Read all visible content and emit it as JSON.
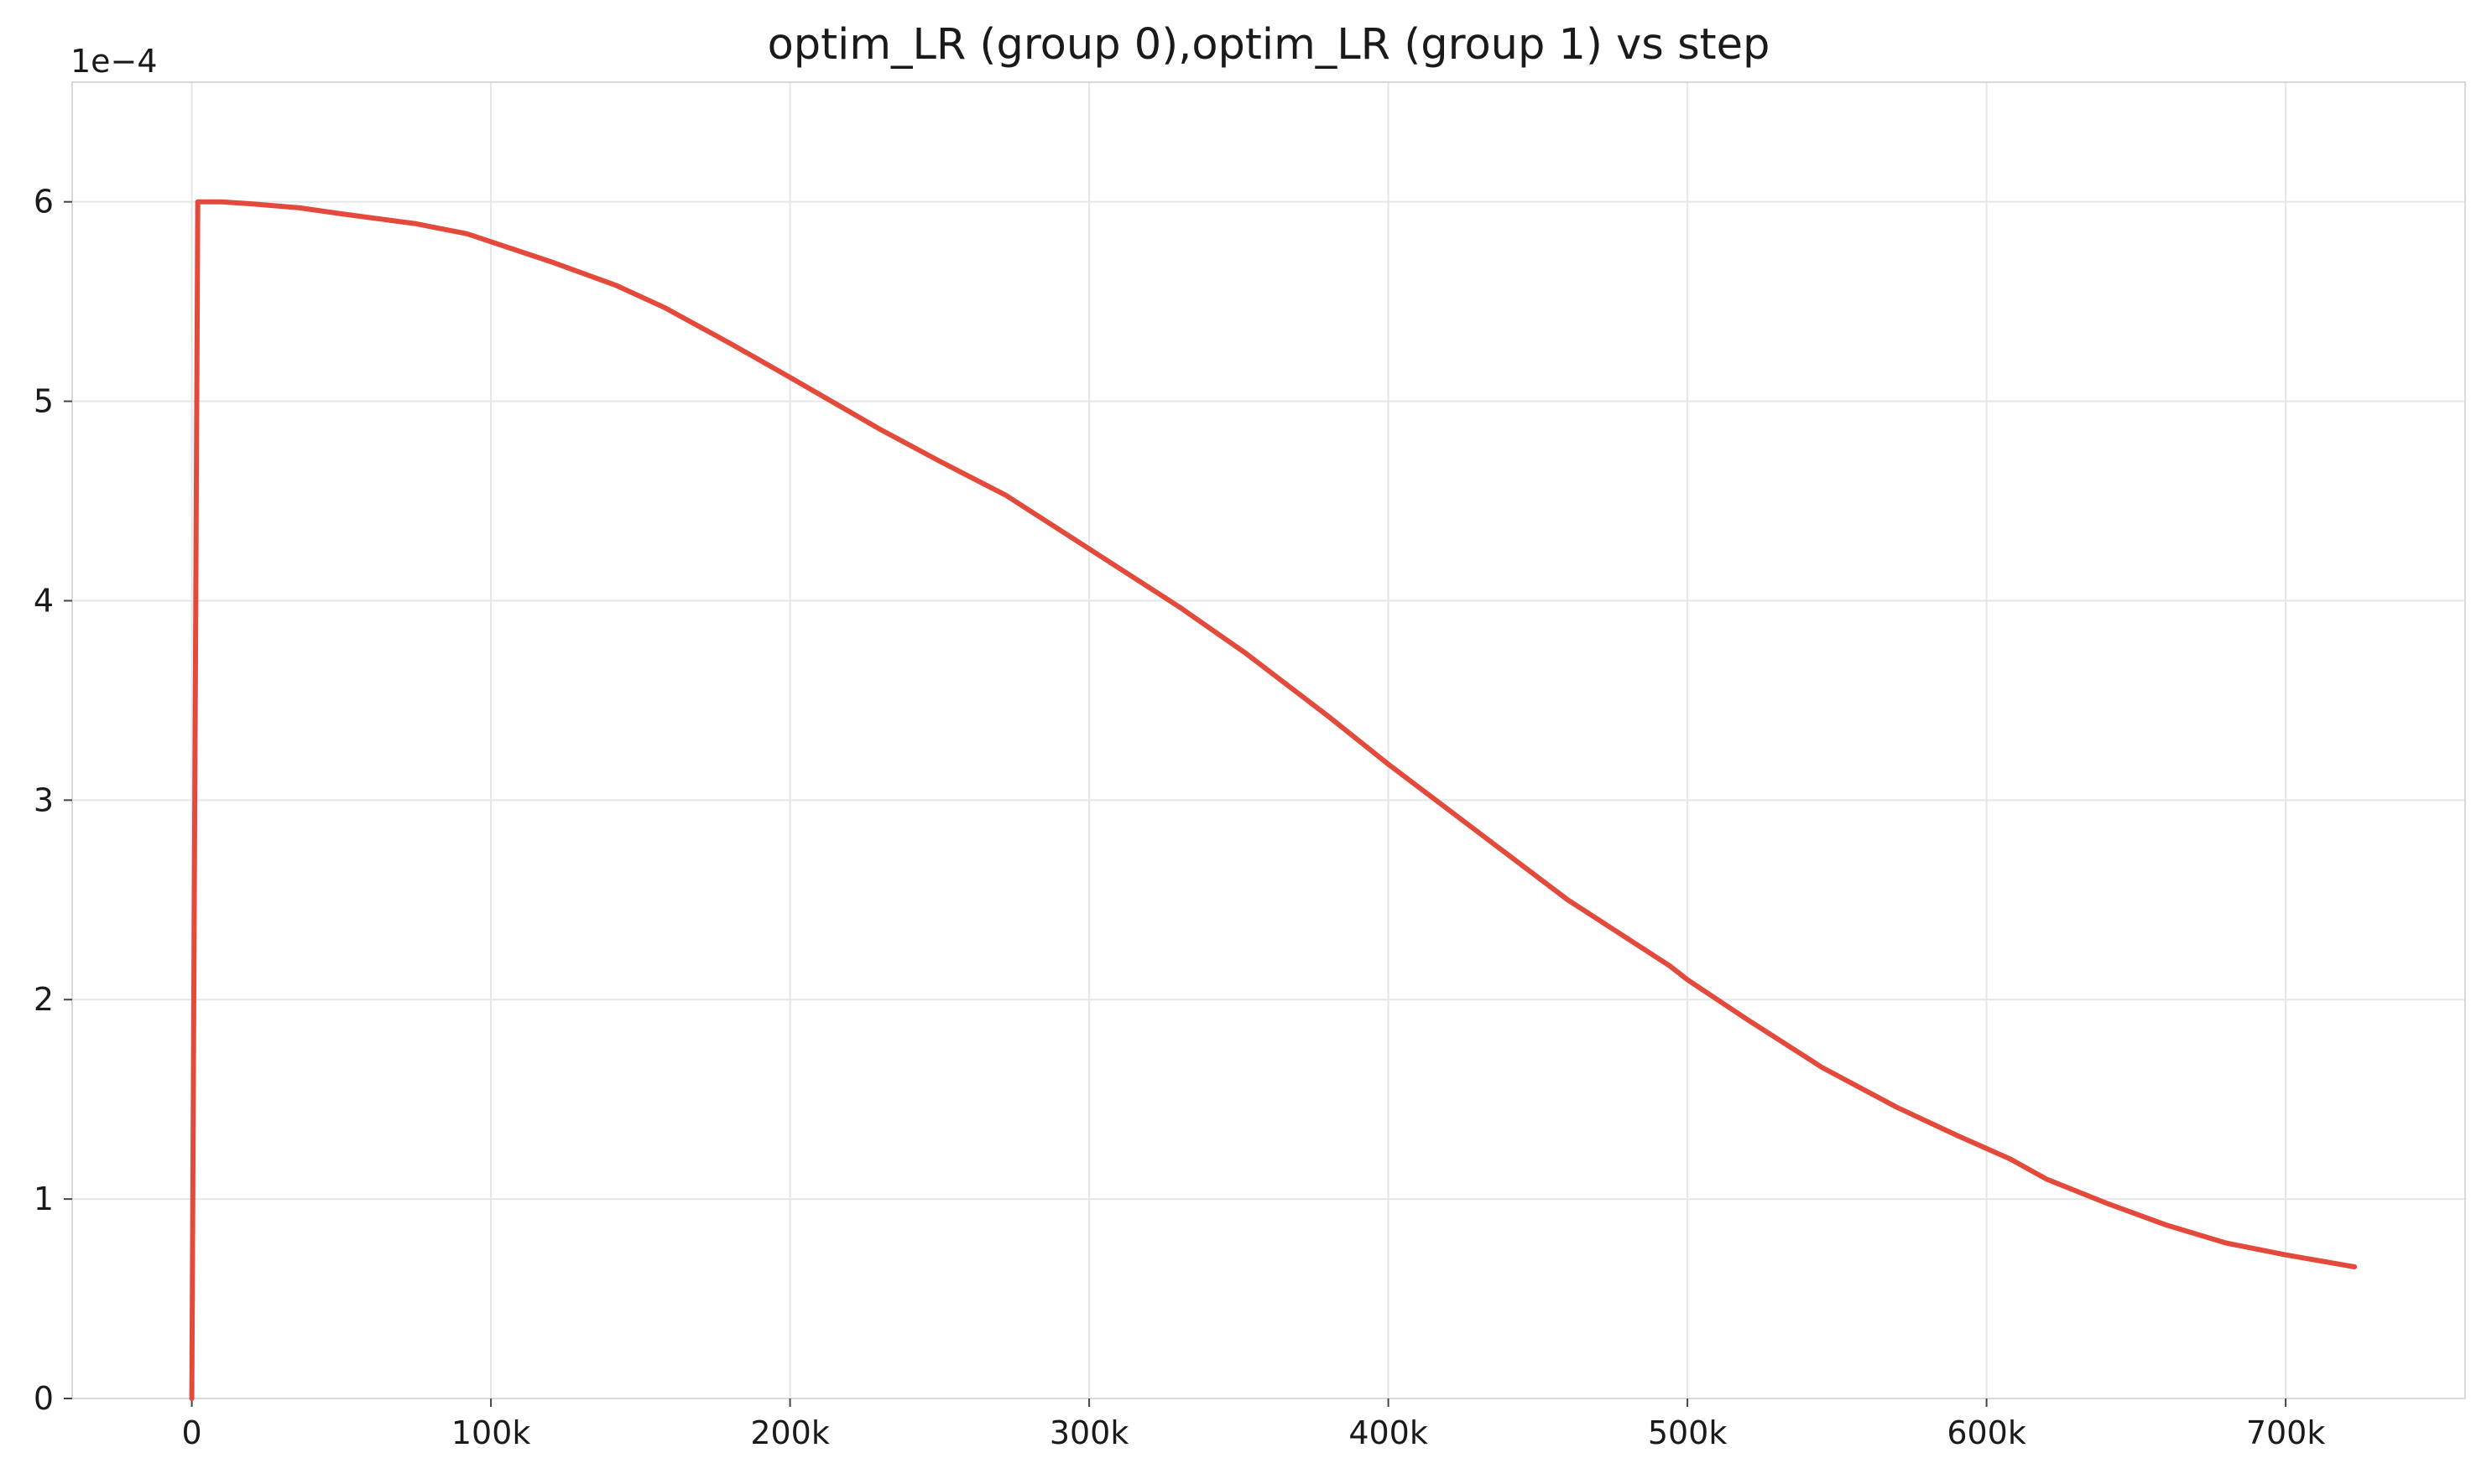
{
  "chart_data": {
    "type": "line",
    "title": "optim_LR (group 0),optim_LR (group 1) vs step",
    "xlabel": "",
    "ylabel": "",
    "y_offset_label": "1e−4",
    "xlim": [
      -40000,
      760000
    ],
    "ylim": [
      0,
      6.6
    ],
    "x_ticks": [
      0,
      100000,
      200000,
      300000,
      400000,
      500000,
      600000,
      700000
    ],
    "x_tick_labels": [
      "0",
      "100k",
      "200k",
      "300k",
      "400k",
      "500k",
      "600k",
      "700k"
    ],
    "y_ticks": [
      0,
      1,
      2,
      3,
      4,
      5,
      6
    ],
    "y_tick_labels": [
      "0",
      "1",
      "2",
      "3",
      "4",
      "5",
      "6"
    ],
    "grid": true,
    "legend": "none",
    "colors": {
      "line": "#e34a3b",
      "grid": "#e6e6e6"
    },
    "series": [
      {
        "x": [
          0,
          2000,
          10000,
          20000,
          36000,
          50000,
          75000,
          92000,
          120000,
          142000,
          158000,
          180000,
          200000,
          230000,
          250000,
          272000,
          300000,
          330000,
          352000,
          380000,
          400000,
          430000,
          460000,
          494000,
          500000,
          520000,
          545000,
          570000,
          590000,
          608000,
          620000,
          640000,
          660000,
          680000,
          700000,
          723000
        ],
        "y": [
          0.0,
          6.0,
          6.0,
          5.99,
          5.97,
          5.94,
          5.89,
          5.84,
          5.7,
          5.58,
          5.47,
          5.29,
          5.12,
          4.86,
          4.7,
          4.53,
          4.26,
          3.97,
          3.74,
          3.42,
          3.18,
          2.84,
          2.5,
          2.17,
          2.1,
          1.9,
          1.66,
          1.46,
          1.32,
          1.2,
          1.1,
          0.98,
          0.87,
          0.78,
          0.72,
          0.66
        ]
      }
    ]
  }
}
